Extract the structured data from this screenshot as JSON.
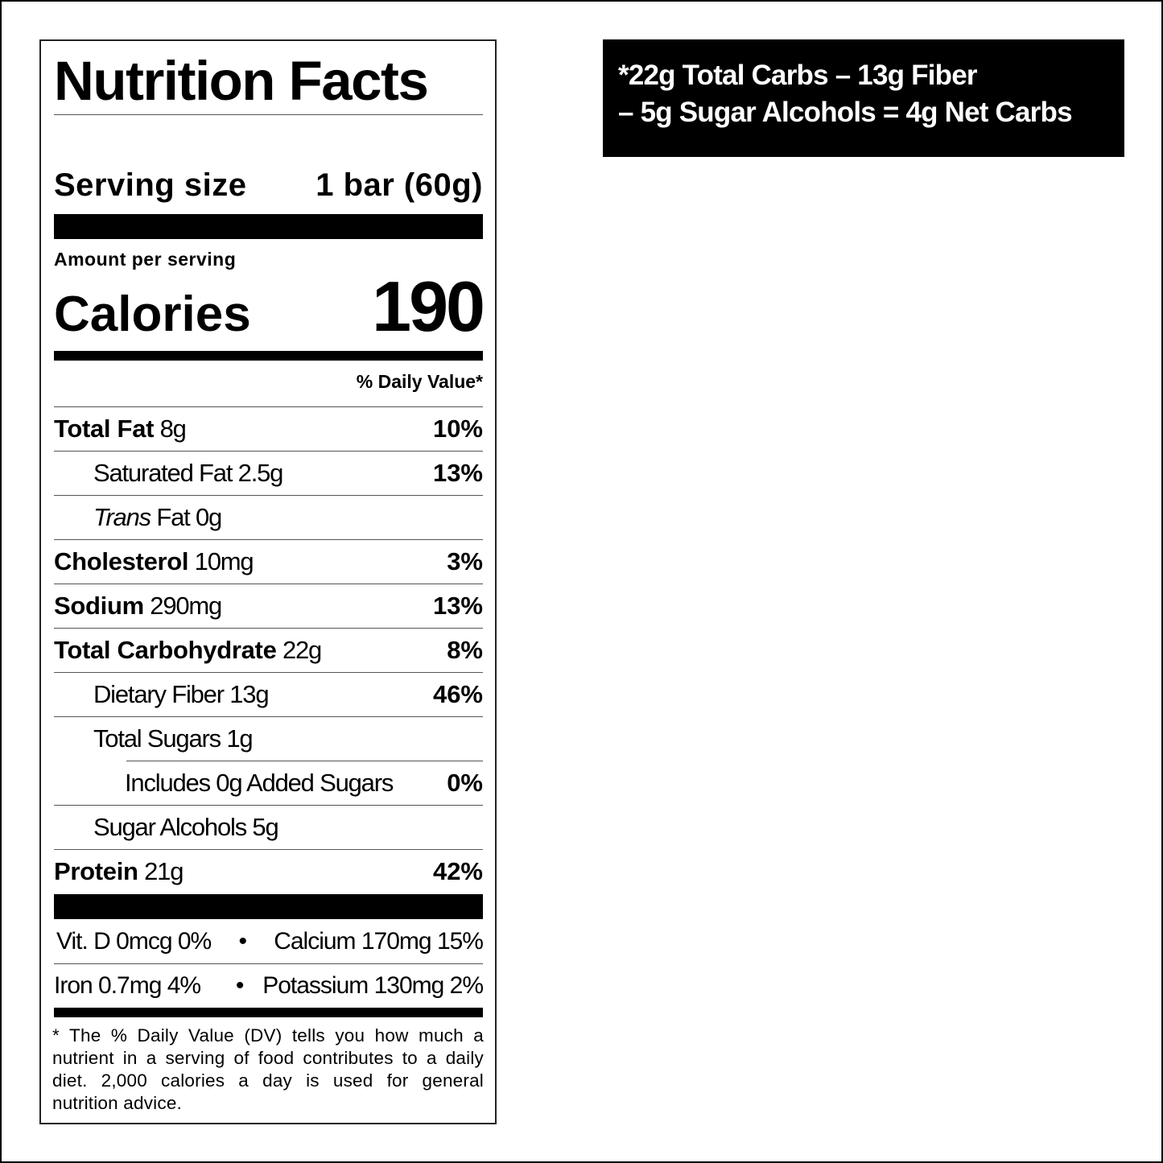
{
  "label": {
    "title": "Nutrition Facts",
    "serving_size_label": "Serving size",
    "serving_size_value": "1 bar (60g)",
    "amount_per_serving": "Amount per serving",
    "calories_label": "Calories",
    "calories_value": "190",
    "daily_value_header": "% Daily Value*",
    "nutrients": [
      {
        "name": "Total Fat",
        "amount": "8g",
        "dv": "10%",
        "bold": true,
        "indent": 0
      },
      {
        "name": "Saturated Fat",
        "amount": "2.5g",
        "dv": "13%",
        "bold": false,
        "indent": 1
      },
      {
        "name_italic": "Trans",
        "name": "Fat",
        "amount": "0g",
        "dv": "",
        "bold": false,
        "indent": 1
      },
      {
        "name": "Cholesterol",
        "amount": "10mg",
        "dv": "3%",
        "bold": true,
        "indent": 0
      },
      {
        "name": "Sodium",
        "amount": "290mg",
        "dv": "13%",
        "bold": true,
        "indent": 0
      },
      {
        "name": "Total Carbohydrate",
        "amount": "22g",
        "dv": "8%",
        "bold": true,
        "indent": 0
      },
      {
        "name": "Dietary Fiber",
        "amount": "13g",
        "dv": "46%",
        "bold": false,
        "indent": 1
      },
      {
        "name": "Total Sugars",
        "amount": "1g",
        "dv": "",
        "bold": false,
        "indent": 1
      },
      {
        "name": "Includes 0g Added Sugars",
        "amount": "",
        "dv": "0%",
        "bold": false,
        "indent": 2
      },
      {
        "name": "Sugar Alcohols",
        "amount": "5g",
        "dv": "",
        "bold": false,
        "indent": 1
      },
      {
        "name": "Protein",
        "amount": "21g",
        "dv": "42%",
        "bold": true,
        "indent": 0
      }
    ],
    "vitamins": [
      {
        "left": "Vit. D 0mcg 0%",
        "right": "Calcium 170mg 15%"
      },
      {
        "left": "Iron 0.7mg 4%",
        "right": "Potassium 130mg 2%"
      }
    ],
    "separator": "•",
    "footnote_star": "*",
    "footnote": "The % Daily Value (DV) tells you how much a nutrient in a serving of food contributes to a daily diet. 2,000 calories a day is used for general nutrition advice."
  },
  "net_carbs": {
    "line1": "*22g Total Carbs – 13g Fiber",
    "line2": "– 5g Sugar Alcohols = 4g Net Carbs"
  }
}
